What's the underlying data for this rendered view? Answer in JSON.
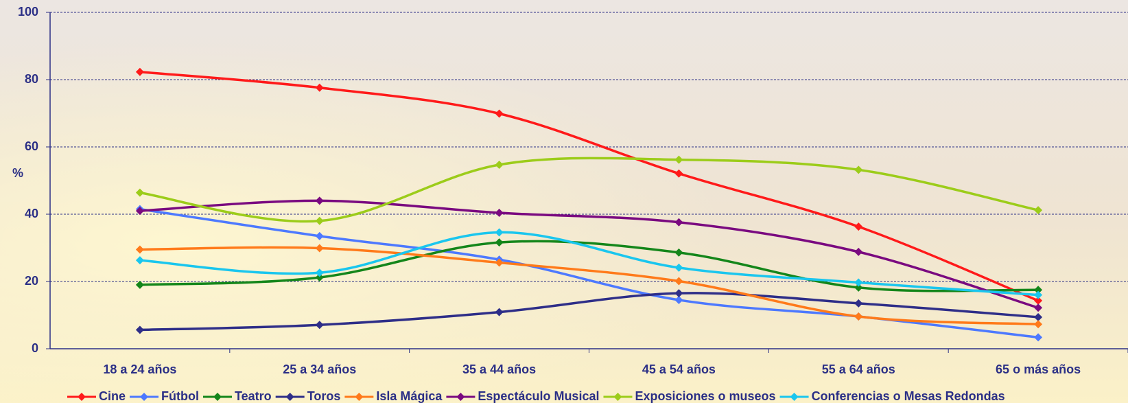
{
  "chart_data": {
    "type": "line",
    "y_label": "%",
    "categories": [
      "18 a 24 años",
      "25 a 34 años",
      "35 a 44 años",
      "45 a 54 años",
      "55 a 64 años",
      "65 o más años"
    ],
    "series": [
      {
        "name": "Cine",
        "color": "#ff1a1a",
        "values": [
          82.3,
          77.6,
          69.9,
          52.1,
          36.3,
          14.3
        ]
      },
      {
        "name": "Fútbol",
        "color": "#4d79ff",
        "values": [
          41.5,
          33.5,
          26.5,
          14.5,
          9.6,
          3.4
        ]
      },
      {
        "name": "Teatro",
        "color": "#14861a",
        "values": [
          19,
          21.2,
          31.6,
          28.6,
          18.2,
          17.5
        ]
      },
      {
        "name": "Toros",
        "color": "#2e2e88",
        "values": [
          5.6,
          7.1,
          10.9,
          16.5,
          13.5,
          9.4
        ]
      },
      {
        "name": "Isla Mágica",
        "color": "#ff7a1a",
        "values": [
          29.5,
          29.9,
          25.6,
          20.1,
          9.6,
          7.3
        ]
      },
      {
        "name": "Espectáculo Musical",
        "color": "#7a0a80",
        "values": [
          41,
          44,
          40.4,
          37.6,
          28.8,
          12.2
        ]
      },
      {
        "name": "Exposiciones o museos",
        "color": "#9ccc1a",
        "values": [
          46.4,
          38,
          54.7,
          56.2,
          53.2,
          41.2
        ]
      },
      {
        "name": "Conferencias o Mesas Redondas",
        "color": "#1ac6ee",
        "values": [
          26.3,
          22.6,
          34.6,
          24.1,
          19.7,
          16
        ]
      }
    ],
    "ylim": [
      0,
      100
    ],
    "yticks": [
      0,
      20,
      40,
      60,
      80,
      100
    ],
    "grid": true,
    "legend": "bottom"
  }
}
